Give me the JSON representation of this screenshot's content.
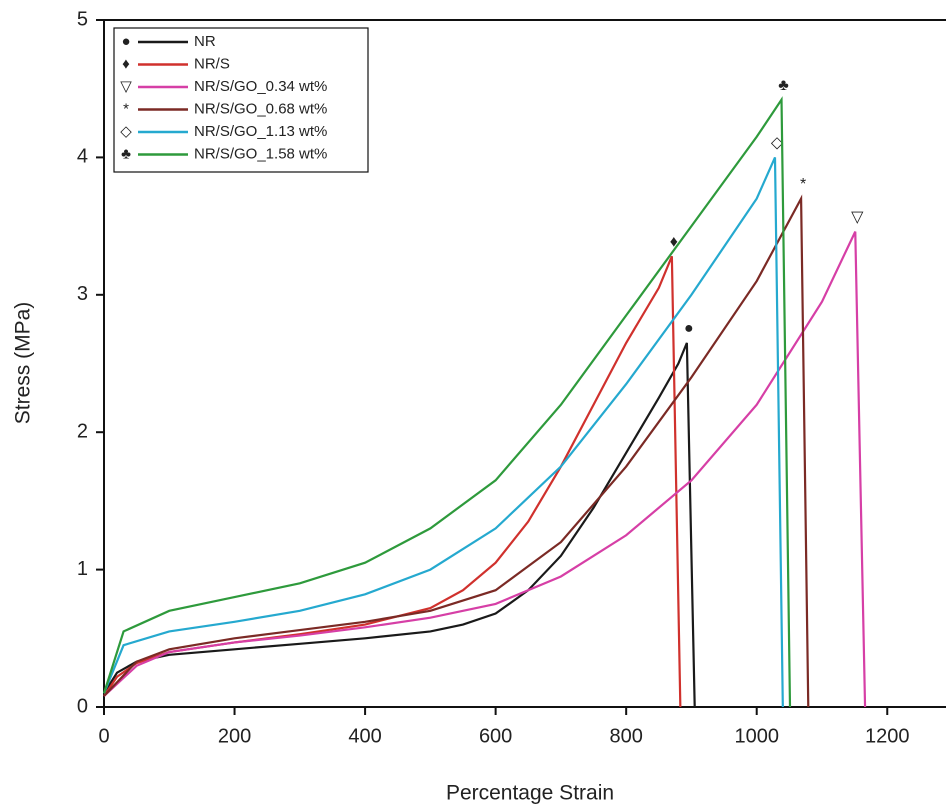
{
  "chart_data": {
    "type": "line",
    "x_label": "Percentage Strain",
    "y_label": "Stress (MPa)",
    "xlim": [
      0,
      1290
    ],
    "ylim": [
      0,
      5
    ],
    "xticks": [
      0,
      200,
      400,
      600,
      800,
      1000,
      1200
    ],
    "yticks": [
      0,
      1,
      2,
      3,
      4,
      5
    ],
    "legend_position": "upper left",
    "series": [
      {
        "name": "NR",
        "color": "#1a1a1a",
        "marker": "●",
        "x": [
          0,
          20,
          50,
          100,
          200,
          300,
          400,
          500,
          550,
          600,
          650,
          700,
          750,
          800,
          850,
          880,
          893,
          905
        ],
        "values": [
          0.1,
          0.25,
          0.33,
          0.38,
          0.42,
          0.46,
          0.5,
          0.55,
          0.6,
          0.68,
          0.85,
          1.1,
          1.45,
          1.85,
          2.25,
          2.5,
          2.65,
          0
        ]
      },
      {
        "name": "NR/S",
        "color": "#d0312d",
        "marker": "♦",
        "x": [
          0,
          20,
          50,
          100,
          200,
          300,
          400,
          500,
          550,
          600,
          650,
          700,
          750,
          800,
          850,
          870,
          883
        ],
        "values": [
          0.08,
          0.22,
          0.32,
          0.4,
          0.47,
          0.53,
          0.6,
          0.72,
          0.85,
          1.05,
          1.35,
          1.75,
          2.2,
          2.65,
          3.05,
          3.28,
          0
        ]
      },
      {
        "name": "NR/S/GO_0.34 wt%",
        "color": "#d63fa6",
        "marker": "▽",
        "x": [
          0,
          50,
          100,
          200,
          300,
          400,
          500,
          600,
          700,
          800,
          900,
          1000,
          1100,
          1151,
          1166
        ],
        "values": [
          0.08,
          0.3,
          0.4,
          0.47,
          0.52,
          0.58,
          0.65,
          0.75,
          0.95,
          1.25,
          1.65,
          2.2,
          2.95,
          3.46,
          0
        ]
      },
      {
        "name": "NR/S/GO_0.68 wt%",
        "color": "#7b2a25",
        "marker": "*",
        "x": [
          0,
          50,
          100,
          200,
          300,
          400,
          500,
          600,
          700,
          800,
          900,
          1000,
          1068,
          1079
        ],
        "values": [
          0.08,
          0.33,
          0.42,
          0.5,
          0.56,
          0.62,
          0.7,
          0.85,
          1.2,
          1.75,
          2.4,
          3.1,
          3.7,
          0
        ]
      },
      {
        "name": "NR/S/GO_1.13 wt%",
        "color": "#25a9cf",
        "marker": "◇",
        "x": [
          0,
          30,
          100,
          200,
          300,
          400,
          500,
          600,
          700,
          800,
          900,
          1000,
          1028,
          1040
        ],
        "values": [
          0.1,
          0.45,
          0.55,
          0.62,
          0.7,
          0.82,
          1.0,
          1.3,
          1.75,
          2.35,
          3.0,
          3.7,
          4.0,
          0
        ]
      },
      {
        "name": "NR/S/GO_1.58 wt%",
        "color": "#2e9a3c",
        "marker": "♣",
        "x": [
          0,
          30,
          100,
          200,
          300,
          400,
          500,
          600,
          700,
          800,
          900,
          1000,
          1038,
          1051
        ],
        "values": [
          0.1,
          0.55,
          0.7,
          0.8,
          0.9,
          1.05,
          1.3,
          1.65,
          2.2,
          2.85,
          3.5,
          4.15,
          4.42,
          0
        ]
      }
    ]
  }
}
